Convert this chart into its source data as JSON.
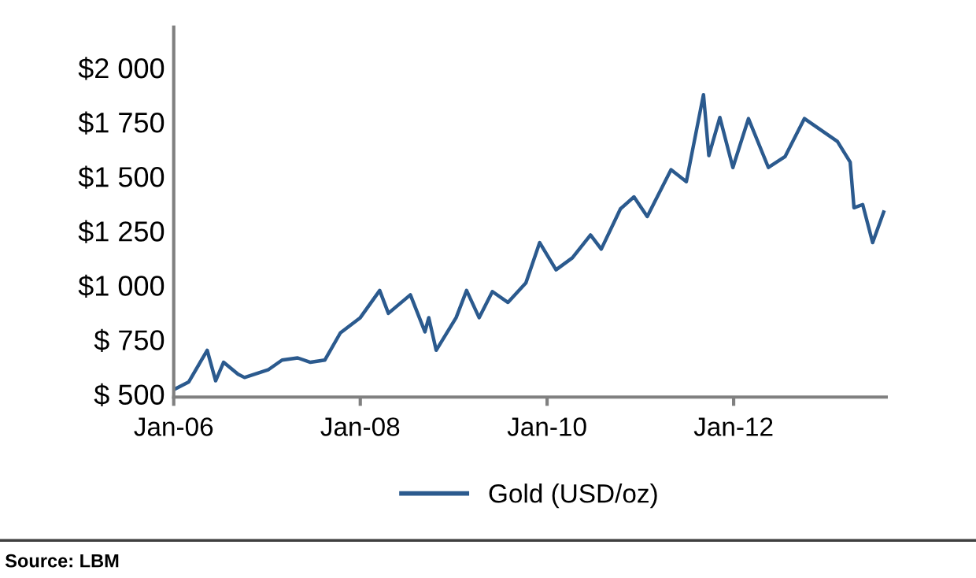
{
  "chart_data": {
    "type": "line",
    "legend": "bottom",
    "grid": false,
    "marker": "none",
    "line_style": "solid",
    "x": [
      "2006-01-03",
      "2006-03-01",
      "2006-05-12",
      "2006-06-14",
      "2006-07-15",
      "2006-09-10",
      "2006-10-05",
      "2007-01-05",
      "2007-03-01",
      "2007-05-01",
      "2007-06-20",
      "2007-08-15",
      "2007-10-15",
      "2008-01-01",
      "2008-03-17",
      "2008-04-20",
      "2008-07-15",
      "2008-09-10",
      "2008-09-25",
      "2008-10-24",
      "2009-01-10",
      "2009-02-20",
      "2009-04-10",
      "2009-06-01",
      "2009-08-01",
      "2009-10-10",
      "2009-12-03",
      "2010-02-05",
      "2010-04-10",
      "2010-06-20",
      "2010-08-01",
      "2010-10-15",
      "2010-12-07",
      "2011-01-28",
      "2011-05-01",
      "2011-06-30",
      "2011-09-05",
      "2011-09-26",
      "2011-11-08",
      "2011-12-29",
      "2012-02-28",
      "2012-05-16",
      "2012-07-20",
      "2012-10-04",
      "2013-02-10",
      "2013-04-01",
      "2013-04-16",
      "2013-05-20",
      "2013-06-28",
      "2013-08-10"
    ],
    "series": [
      {
        "name": "Gold (USD/oz)",
        "color": "#2b5a8e",
        "values": [
          535,
          570,
          715,
          575,
          660,
          605,
          590,
          625,
          670,
          680,
          660,
          670,
          795,
          865,
          990,
          885,
          970,
          800,
          865,
          715,
          865,
          990,
          865,
          985,
          935,
          1025,
          1210,
          1085,
          1140,
          1245,
          1180,
          1365,
          1420,
          1330,
          1545,
          1490,
          1890,
          1610,
          1785,
          1555,
          1780,
          1555,
          1605,
          1780,
          1675,
          1580,
          1370,
          1385,
          1210,
          1350
        ]
      }
    ],
    "xlim": [
      "2006-01-01",
      "2013-08-20"
    ],
    "xticks": [
      {
        "value": "2006-01-01",
        "label": "Jan-06"
      },
      {
        "value": "2008-01-01",
        "label": "Jan-08"
      },
      {
        "value": "2010-01-01",
        "label": "Jan-10"
      },
      {
        "value": "2012-01-01",
        "label": "Jan-12"
      }
    ],
    "ylim": [
      500,
      2200
    ],
    "yticks": [
      {
        "value": 500,
        "label": "$ 500"
      },
      {
        "value": 750,
        "label": "$ 750"
      },
      {
        "value": 1000,
        "label": "$1 000"
      },
      {
        "value": 1250,
        "label": "$1 250"
      },
      {
        "value": 1500,
        "label": "$1 500"
      },
      {
        "value": 1750,
        "label": "$1 750"
      },
      {
        "value": 2000,
        "label": "$2 000"
      }
    ],
    "annotations": [
      "Source: LBM"
    ]
  }
}
